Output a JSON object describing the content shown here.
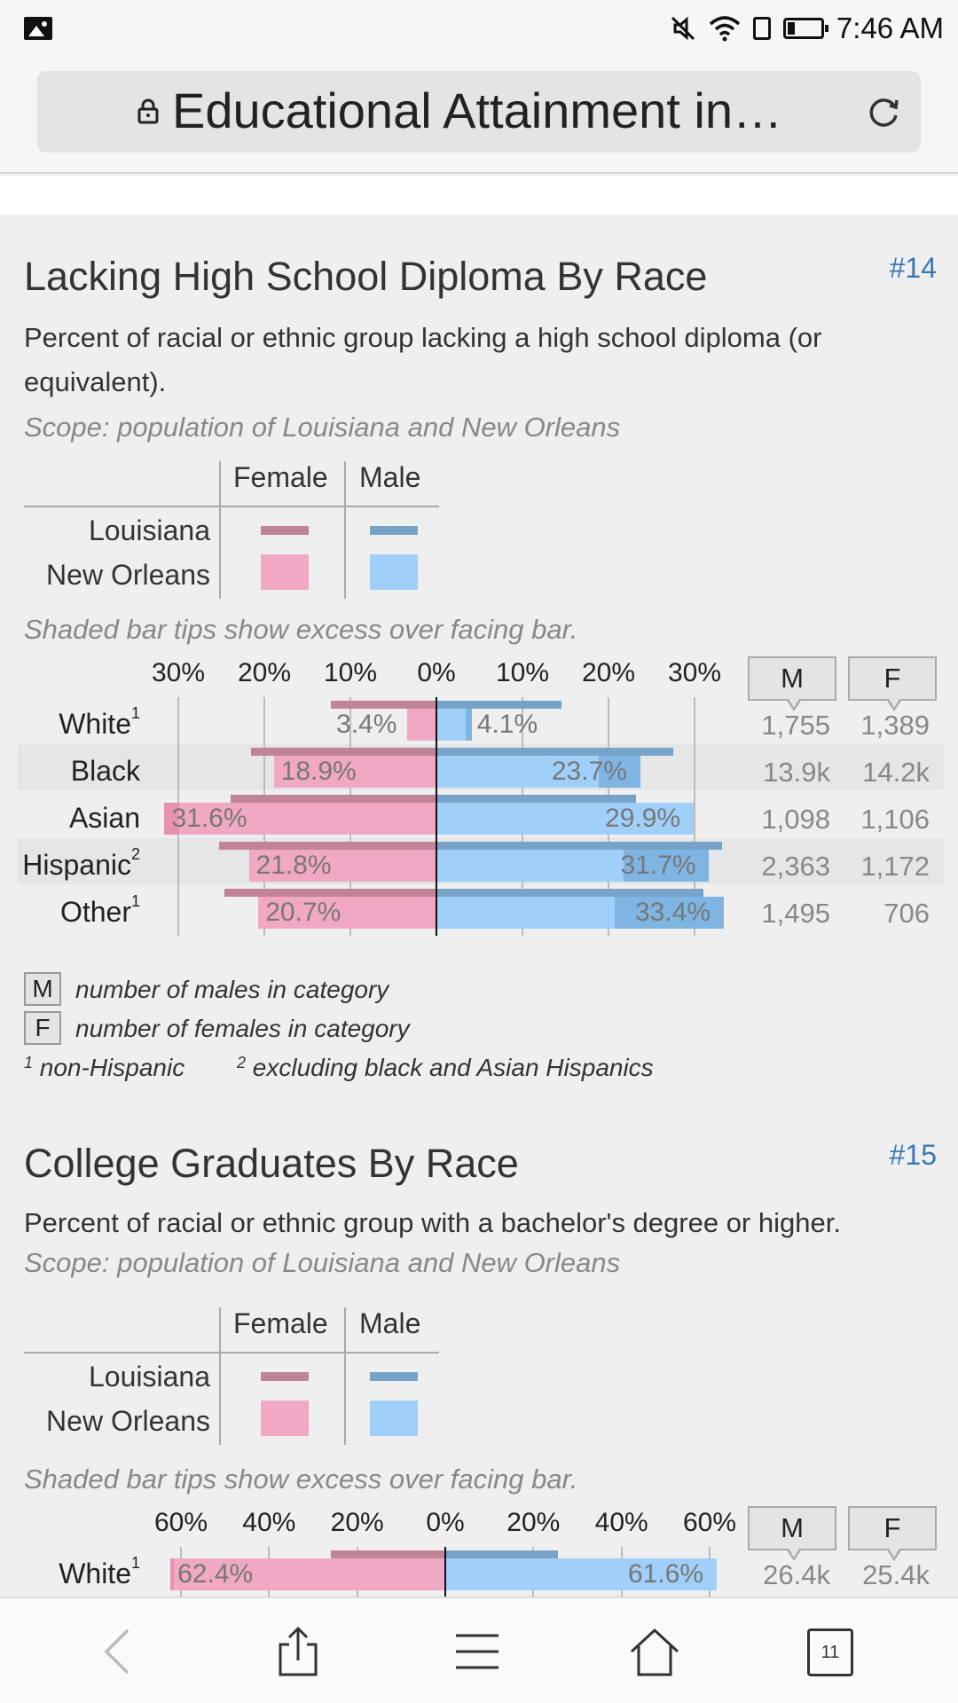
{
  "status_bar": {
    "time": "7:46 AM"
  },
  "browser": {
    "page_title": "Educational Attainment in…",
    "tab_count": "11"
  },
  "legend_labels": {
    "female": "Female",
    "male": "Male",
    "louisiana": "Louisiana",
    "new_orleans": "New Orleans"
  },
  "colors": {
    "female_no": "#f0a8c4",
    "female_la": "#c08398",
    "male_no": "#a0d0fa",
    "male_la": "#78a3c9",
    "female_tip": "#e592b3",
    "male_tip": "#7fb5e3"
  },
  "sections": [
    {
      "title": "Lacking High School Diploma By Race",
      "number": "#14",
      "description": "Percent of racial or ethnic group lacking a high school diploma (or equivalent).",
      "scope": "Scope: population of Louisiana and New Orleans",
      "shaded_note": "Shaded bar tips show excess over facing bar.",
      "count_headers": {
        "m": "M",
        "f": "F"
      },
      "chart_data": {
        "type": "bar",
        "orientation": "horizontal-butterfly",
        "axis_ticks": [
          "30%",
          "20%",
          "10%",
          "0%",
          "10%",
          "20%",
          "30%"
        ],
        "axis_max": 30,
        "categories": [
          "White",
          "Black",
          "Asian",
          "Hispanic",
          "Other"
        ],
        "superscripts": [
          "1",
          "",
          "",
          "2",
          "1"
        ],
        "series": [
          {
            "name": "New Orleans Female",
            "values": [
              3.4,
              18.9,
              31.6,
              21.8,
              20.7
            ],
            "labels": [
              "3.4%",
              "18.9%",
              "31.6%",
              "21.8%",
              "20.7%"
            ]
          },
          {
            "name": "New Orleans Male",
            "values": [
              4.1,
              23.7,
              29.9,
              31.7,
              33.4
            ],
            "labels": [
              "4.1%",
              "23.7%",
              "29.9%",
              "31.7%",
              "33.4%"
            ]
          },
          {
            "name": "Louisiana Female",
            "values": [
              12.3,
              21.5,
              23.9,
              25.3,
              24.6
            ]
          },
          {
            "name": "Louisiana Male",
            "values": [
              14.5,
              27.5,
              23.2,
              33.2,
              31.0
            ]
          }
        ],
        "male_counts": [
          "1,755",
          "13.9k",
          "1,098",
          "2,363",
          "1,495"
        ],
        "female_counts": [
          "1,389",
          "14.2k",
          "1,106",
          "1,172",
          "706"
        ]
      },
      "notes": {
        "m_box": "M",
        "m_text": "number of males in category",
        "f_box": "F",
        "f_text": "number of females in category",
        "fn1_mark": "1",
        "fn1_text": "non-Hispanic",
        "fn2_mark": "2",
        "fn2_text": "excluding black and Asian Hispanics"
      }
    },
    {
      "title": "College Graduates By Race",
      "number": "#15",
      "description": "Percent of racial or ethnic group with a bachelor's degree or higher.",
      "scope": "Scope: population of Louisiana and New Orleans",
      "shaded_note": "Shaded bar tips show excess over facing bar.",
      "count_headers": {
        "m": "M",
        "f": "F"
      },
      "chart_data": {
        "type": "bar",
        "orientation": "horizontal-butterfly",
        "axis_ticks": [
          "60%",
          "40%",
          "20%",
          "0%",
          "20%",
          "40%",
          "60%"
        ],
        "axis_max": 60,
        "categories": [
          "White"
        ],
        "superscripts": [
          "1"
        ],
        "series": [
          {
            "name": "New Orleans Female",
            "values": [
              62.4
            ],
            "labels": [
              "62.4%"
            ]
          },
          {
            "name": "New Orleans Male",
            "values": [
              61.6
            ],
            "labels": [
              "61.6%"
            ]
          },
          {
            "name": "Louisiana Female",
            "values": [
              26.0
            ]
          },
          {
            "name": "Louisiana Male",
            "values": [
              25.5
            ]
          }
        ],
        "male_counts": [
          "26.4k"
        ],
        "female_counts": [
          "25.4k"
        ]
      }
    }
  ]
}
